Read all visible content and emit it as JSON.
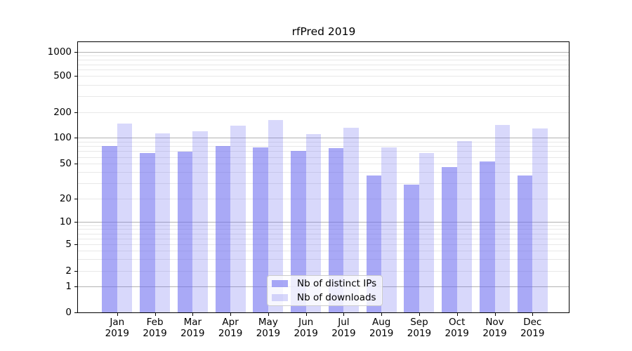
{
  "title": "rfPred 2019",
  "chart_data": {
    "type": "bar",
    "title": "rfPred 2019",
    "categories": [
      "Jan",
      "Feb",
      "Mar",
      "Apr",
      "May",
      "Jun",
      "Jul",
      "Aug",
      "Sep",
      "Oct",
      "Nov",
      "Dec"
    ],
    "year": "2019",
    "series": [
      {
        "name": "Nb of distinct IPs",
        "values": [
          80,
          67,
          69,
          80,
          78,
          71,
          76,
          37,
          29,
          46,
          53,
          37
        ]
      },
      {
        "name": "Nb of downloads",
        "values": [
          148,
          113,
          119,
          138,
          163,
          110,
          130,
          78,
          67,
          92,
          142,
          129
        ]
      }
    ],
    "yscale": "symlog",
    "y_ticks": [
      0,
      1,
      2,
      5,
      10,
      20,
      50,
      100,
      200,
      500,
      1000
    ],
    "ylim": [
      0,
      1300
    ],
    "grid": true,
    "legend_position": "lower center"
  },
  "colors": {
    "bar_series": [
      "rgba(106,106,240,0.58)",
      "rgba(106,106,240,0.26)"
    ],
    "major_grid": "#b2b2b2",
    "minor_grid": "#e8e8e8",
    "axis": "#000000"
  }
}
